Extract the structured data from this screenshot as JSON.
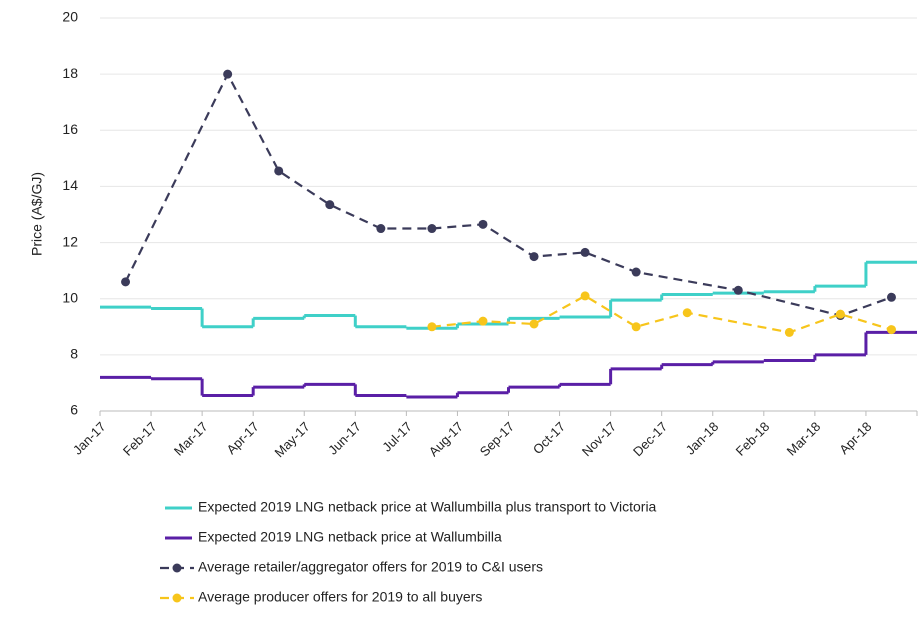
{
  "chart_data": {
    "type": "line",
    "y_label": "Price (A$/GJ)",
    "xlim": [
      0,
      16
    ],
    "xticks": [
      {
        "value": 0,
        "label": "Jan-17"
      },
      {
        "value": 1,
        "label": "Feb-17"
      },
      {
        "value": 2,
        "label": "Mar-17"
      },
      {
        "value": 3,
        "label": "Apr-17"
      },
      {
        "value": 4,
        "label": "May-17"
      },
      {
        "value": 5,
        "label": "Jun-17"
      },
      {
        "value": 6,
        "label": "Jul-17"
      },
      {
        "value": 7,
        "label": "Aug-17"
      },
      {
        "value": 8,
        "label": "Sep-17"
      },
      {
        "value": 9,
        "label": "Oct-17"
      },
      {
        "value": 10,
        "label": "Nov-17"
      },
      {
        "value": 11,
        "label": "Dec-17"
      },
      {
        "value": 12,
        "label": "Jan-18"
      },
      {
        "value": 13,
        "label": "Feb-18"
      },
      {
        "value": 14,
        "label": "Mar-18"
      },
      {
        "value": 15,
        "label": "Apr-18"
      }
    ],
    "ylim": [
      6,
      20
    ],
    "yticks": [
      6,
      8,
      10,
      12,
      14,
      16,
      18,
      20
    ],
    "grid": true,
    "series": [
      {
        "name": "Expected 2019 LNG netback price at Wallumbilla plus transport to Victoria",
        "color": "#3fd0c8",
        "style": "step",
        "x": [
          0,
          1,
          2,
          3,
          4,
          5,
          6,
          7,
          8,
          9,
          10,
          11,
          12,
          13,
          14,
          15
        ],
        "values": [
          9.7,
          9.65,
          9.0,
          9.3,
          9.4,
          9.0,
          8.95,
          9.1,
          9.3,
          9.35,
          9.95,
          10.15,
          10.2,
          10.25,
          10.45,
          11.3
        ]
      },
      {
        "name": "Expected 2019 LNG netback price at Wallumbilla",
        "color": "#5a1fa6",
        "style": "step",
        "x": [
          0,
          1,
          2,
          3,
          4,
          5,
          6,
          7,
          8,
          9,
          10,
          11,
          12,
          13,
          14,
          15
        ],
        "values": [
          7.2,
          7.15,
          6.55,
          6.85,
          6.95,
          6.55,
          6.5,
          6.65,
          6.85,
          6.95,
          7.5,
          7.65,
          7.75,
          7.8,
          8.0,
          8.8
        ]
      },
      {
        "name": "Average retailer/aggregator offers for 2019 to C&I users",
        "color": "#3b3b5a",
        "style": "dashed",
        "x": [
          0.5,
          2.5,
          3.5,
          4.5,
          5.5,
          6.5,
          7.5,
          8.5,
          9.5,
          10.5,
          12.5,
          14.5,
          15.5
        ],
        "values": [
          10.6,
          18.0,
          14.55,
          13.35,
          12.5,
          12.5,
          12.65,
          11.5,
          11.65,
          10.95,
          10.3,
          9.4,
          10.05
        ]
      },
      {
        "name": "Average producer offers for 2019 to all buyers",
        "color": "#f7c51b",
        "style": "dashed",
        "x": [
          6.5,
          7.5,
          8.5,
          9.5,
          10.5,
          11.5,
          13.5,
          14.5,
          15.5
        ],
        "values": [
          9.0,
          9.2,
          9.1,
          10.1,
          9.0,
          9.5,
          8.8,
          9.45,
          8.9
        ]
      }
    ]
  }
}
